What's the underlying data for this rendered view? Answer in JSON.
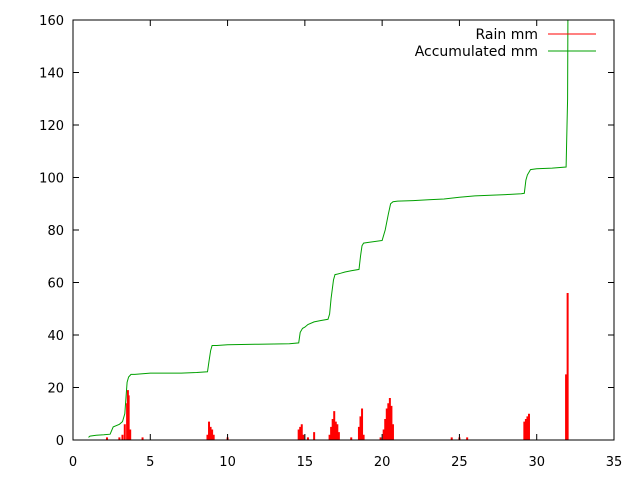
{
  "chart_data": {
    "type": "line",
    "title": "",
    "xlabel": "",
    "ylabel": "",
    "xlim": [
      0,
      35
    ],
    "ylim": [
      0,
      160
    ],
    "x_ticks": [
      0,
      5,
      10,
      15,
      20,
      25,
      30,
      35
    ],
    "y_ticks": [
      0,
      20,
      40,
      60,
      80,
      100,
      120,
      140,
      160
    ],
    "grid": false,
    "legend_position": "top-right",
    "series": [
      {
        "name": "Rain mm",
        "type": "impulse",
        "color": "#ff0000",
        "x": [
          2.2,
          3.0,
          3.2,
          3.35,
          3.5,
          3.55,
          3.6,
          3.7,
          4.5,
          8.7,
          8.8,
          8.9,
          9.0,
          9.1,
          10.0,
          14.6,
          14.7,
          14.8,
          14.9,
          15.2,
          15.6,
          16.6,
          16.7,
          16.8,
          16.9,
          17.0,
          17.1,
          17.2,
          18.0,
          18.5,
          18.6,
          18.7,
          18.8,
          19.9,
          20.1,
          20.2,
          20.3,
          20.4,
          20.5,
          20.6,
          20.7,
          24.5,
          25.0,
          25.5,
          29.2,
          29.3,
          29.4,
          29.5,
          31.9,
          32.0
        ],
        "y": [
          1,
          1,
          2,
          6,
          14,
          19,
          17,
          4,
          1,
          2,
          7,
          5,
          4,
          2,
          1,
          4,
          5,
          6,
          2,
          1,
          3,
          2,
          5,
          8,
          11,
          7,
          6,
          3,
          1,
          5,
          9,
          12,
          2,
          1,
          4,
          8,
          12,
          14,
          16,
          13,
          6,
          1,
          1,
          1,
          7,
          8,
          9,
          10,
          25,
          56
        ]
      },
      {
        "name": "Accumulated mm",
        "type": "line",
        "color": "#00a000",
        "x": [
          1.0,
          1.1,
          1.5,
          2.0,
          2.4,
          2.6,
          3.0,
          3.2,
          3.35,
          3.5,
          3.6,
          3.75,
          4.0,
          5.0,
          6.0,
          7.0,
          8.0,
          8.7,
          8.8,
          8.9,
          9.0,
          9.3,
          10.0,
          12.0,
          14.0,
          14.6,
          14.7,
          14.85,
          15.0,
          15.2,
          15.6,
          16.0,
          16.5,
          16.6,
          16.7,
          16.85,
          16.95,
          17.1,
          17.3,
          17.6,
          18.0,
          18.5,
          18.6,
          18.7,
          18.8,
          19.0,
          20.0,
          20.2,
          20.4,
          20.55,
          20.7,
          21.0,
          22.0,
          23.0,
          24.0,
          25.0,
          26.0,
          27.0,
          28.0,
          29.0,
          29.2,
          29.3,
          29.4,
          29.6,
          30.0,
          31.0,
          31.9,
          32.0,
          32.02
        ],
        "y": [
          1,
          1.5,
          1.8,
          2,
          2.2,
          5,
          6,
          7,
          10,
          22,
          24,
          25,
          25,
          25.5,
          25.5,
          25.5,
          25.7,
          26,
          30,
          34,
          36,
          36,
          36.3,
          36.5,
          36.7,
          37,
          41,
          42.5,
          43,
          44,
          45,
          45.5,
          46,
          48,
          54,
          61,
          63,
          63.2,
          63.5,
          64,
          64.5,
          65,
          70,
          74,
          75,
          75.2,
          76,
          80,
          86,
          90,
          90.8,
          91,
          91.2,
          91.5,
          91.8,
          92.5,
          93,
          93.2,
          93.5,
          93.8,
          94,
          99,
          101,
          103,
          103.3,
          103.6,
          104,
          130,
          160
        ]
      }
    ]
  }
}
